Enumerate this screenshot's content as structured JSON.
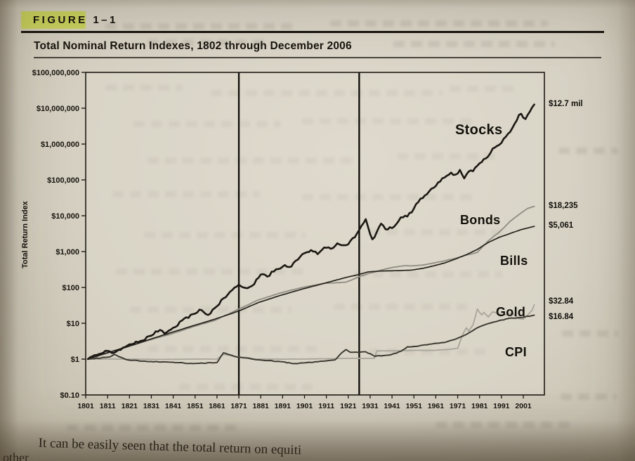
{
  "page": {
    "figure_label": "FIGURE 1–1",
    "caption": "It can be easily seen that the total return on equiti",
    "caption_fragment": "other"
  },
  "chart_data": {
    "type": "line",
    "title": "Total Nominal Return Indexes, 1802 through December 2006",
    "xlabel": "",
    "ylabel": "Total Return Index",
    "y_scale": "log",
    "ylim": [
      0.1,
      100000000
    ],
    "xlim": [
      1801,
      2010
    ],
    "grid": false,
    "legend_position": "inline-labels",
    "y_ticks": [
      {
        "value": 100000000,
        "label": "$100,000,000"
      },
      {
        "value": 10000000,
        "label": "$10,000,000"
      },
      {
        "value": 1000000,
        "label": "$1,000,000"
      },
      {
        "value": 100000,
        "label": "$100,000"
      },
      {
        "value": 10000,
        "label": "$10,000"
      },
      {
        "value": 1000,
        "label": "$1,000"
      },
      {
        "value": 100,
        "label": "$100"
      },
      {
        "value": 10,
        "label": "$10"
      },
      {
        "value": 1,
        "label": "$1"
      },
      {
        "value": 0.1,
        "label": "$0.10"
      }
    ],
    "x_tick_labels": [
      "1801",
      "1811",
      "1821",
      "1831",
      "1841",
      "1851",
      "1861",
      "1871",
      "1881",
      "1891",
      "1901",
      "1911",
      "1921",
      "1931",
      "1941",
      "1951",
      "1961",
      "1971",
      "1981",
      "1991",
      "2001"
    ],
    "vertical_marker_years": [
      1871,
      1926
    ],
    "series": [
      {
        "name": "Stocks",
        "end_label": "$12.7 mil",
        "color": "#1b1813",
        "width": 2.6,
        "x": [
          1802,
          1806,
          1810,
          1814,
          1818,
          1822,
          1826,
          1831,
          1835,
          1837,
          1841,
          1845,
          1850,
          1853,
          1857,
          1861,
          1864,
          1868,
          1871,
          1873,
          1877,
          1881,
          1884,
          1888,
          1892,
          1895,
          1898,
          1901,
          1904,
          1907,
          1910,
          1913,
          1916,
          1918,
          1921,
          1924,
          1926,
          1929,
          1930,
          1932,
          1934,
          1936,
          1938,
          1940,
          1942,
          1945,
          1948,
          1951,
          1954,
          1957,
          1960,
          1963,
          1966,
          1968,
          1970,
          1972,
          1974,
          1976,
          1978,
          1981,
          1984,
          1987,
          1988,
          1990,
          1993,
          1996,
          1999,
          2000,
          2002,
          2003,
          2004,
          2005,
          2006
        ],
        "values": [
          1,
          1.3,
          1.7,
          1.5,
          2.1,
          2.6,
          3.2,
          4.5,
          6.5,
          5.2,
          7.5,
          12,
          18,
          24,
          17,
          30,
          50,
          85,
          120,
          100,
          110,
          230,
          200,
          320,
          420,
          380,
          600,
          900,
          1100,
          850,
          1300,
          1200,
          1700,
          1500,
          1600,
          2500,
          4000,
          8000,
          5000,
          2200,
          3500,
          6000,
          4200,
          4800,
          5000,
          9000,
          9500,
          16000,
          30000,
          40000,
          60000,
          90000,
          130000,
          160000,
          140000,
          190000,
          110000,
          170000,
          175000,
          290000,
          400000,
          750000,
          800000,
          950000,
          1600000,
          2800000,
          6500000,
          7000000,
          5000000,
          6500000,
          8000000,
          10500000,
          12700000
        ]
      },
      {
        "name": "Bonds",
        "end_label": "$18,235",
        "color": "#8f8c81",
        "width": 1.8,
        "x": [
          1802,
          1810,
          1820,
          1830,
          1840,
          1850,
          1860,
          1871,
          1880,
          1890,
          1900,
          1910,
          1920,
          1926,
          1932,
          1940,
          1946,
          1950,
          1955,
          1960,
          1965,
          1970,
          1975,
          1980,
          1985,
          1990,
          1995,
          2000,
          2003,
          2006
        ],
        "values": [
          1,
          1.4,
          2.2,
          3.4,
          5,
          8,
          12,
          25,
          45,
          70,
          100,
          130,
          140,
          200,
          260,
          350,
          400,
          400,
          420,
          480,
          550,
          650,
          800,
          950,
          2000,
          3500,
          7000,
          12000,
          16000,
          18235
        ]
      },
      {
        "name": "Bills",
        "end_label": "$5,061",
        "color": "#26231d",
        "width": 1.7,
        "x": [
          1802,
          1810,
          1820,
          1830,
          1840,
          1850,
          1860,
          1871,
          1880,
          1890,
          1900,
          1910,
          1920,
          1926,
          1930,
          1935,
          1940,
          1945,
          1950,
          1955,
          1960,
          1965,
          1970,
          1975,
          1980,
          1985,
          1990,
          1995,
          2000,
          2006
        ],
        "values": [
          1,
          1.45,
          2.2,
          3.5,
          5.5,
          8.5,
          13,
          22,
          38,
          60,
          90,
          130,
          190,
          230,
          270,
          285,
          290,
          295,
          305,
          340,
          400,
          480,
          620,
          820,
          1150,
          1800,
          2500,
          3200,
          4100,
          5061
        ]
      },
      {
        "name": "Gold",
        "end_label": "$32.84",
        "color": "#a8a599",
        "width": 1.8,
        "x": [
          1802,
          1820,
          1834,
          1850,
          1861,
          1864,
          1866,
          1870,
          1875,
          1879,
          1900,
          1920,
          1933,
          1934,
          1940,
          1950,
          1960,
          1968,
          1971,
          1973,
          1975,
          1976,
          1978,
          1980,
          1981,
          1982,
          1983,
          1985,
          1987,
          1990,
          1993,
          1996,
          1999,
          2001,
          2003,
          2005,
          2006
        ],
        "values": [
          1,
          1,
          0.98,
          1,
          1,
          1.35,
          1.3,
          1.15,
          1.1,
          1,
          1,
          1.05,
          1.05,
          1.69,
          1.7,
          1.75,
          1.75,
          1.9,
          2,
          4.5,
          7.5,
          6,
          9,
          25,
          20,
          17,
          20,
          15,
          21,
          18,
          17,
          19,
          13.5,
          13,
          17,
          23,
          32.84
        ]
      },
      {
        "name": "CPI",
        "end_label": "$16.84",
        "color": "#3a372f",
        "width": 1.9,
        "x": [
          1802,
          1812,
          1814,
          1820,
          1830,
          1840,
          1850,
          1861,
          1864,
          1870,
          1880,
          1890,
          1896,
          1900,
          1910,
          1915,
          1918,
          1920,
          1922,
          1929,
          1933,
          1940,
          1945,
          1948,
          1950,
          1955,
          1960,
          1965,
          1970,
          1975,
          1980,
          1985,
          1990,
          1995,
          2000,
          2006
        ],
        "values": [
          1,
          1.15,
          1.35,
          0.95,
          0.85,
          0.82,
          0.75,
          0.8,
          1.5,
          1.15,
          0.95,
          0.85,
          0.75,
          0.78,
          0.88,
          0.95,
          1.5,
          1.85,
          1.55,
          1.6,
          1.2,
          1.3,
          1.65,
          2.2,
          2.2,
          2.45,
          2.7,
          2.9,
          3.6,
          4.9,
          7.5,
          9.8,
          11.9,
          13.9,
          14.4,
          16.84
        ]
      }
    ]
  }
}
